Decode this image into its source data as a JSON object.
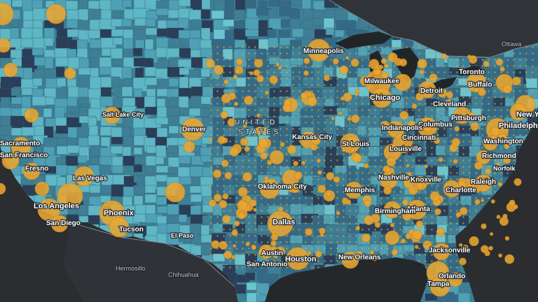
{
  "map": {
    "country_label": [
      "UNITED",
      "STATES"
    ],
    "colors": {
      "background": "#2b2d30",
      "water": "#1f2225",
      "land_light": "#5fb6c4",
      "land_mid": "#3f7f96",
      "land_dark": "#2a3e57",
      "bubble": "#e9a632",
      "border": "#7c8590"
    },
    "cities": [
      {
        "name": "Minneapolis",
        "size": "mid"
      },
      {
        "name": "Toronto",
        "size": "mid"
      },
      {
        "name": "Ottawa",
        "size": "small"
      },
      {
        "name": "Milwaukee",
        "size": "mid"
      },
      {
        "name": "Chicago",
        "size": "big"
      },
      {
        "name": "Detroit",
        "size": "mid"
      },
      {
        "name": "Buffalo",
        "size": "mid"
      },
      {
        "name": "Cleveland",
        "size": "mid"
      },
      {
        "name": "New York",
        "size": "big"
      },
      {
        "name": "Pittsburgh",
        "size": "mid"
      },
      {
        "name": "Columbus",
        "size": "mid"
      },
      {
        "name": "Indianapolis",
        "size": "mid"
      },
      {
        "name": "Cincinnati",
        "size": "mid"
      },
      {
        "name": "Philadelphia",
        "size": "big"
      },
      {
        "name": "Washington",
        "size": "mid"
      },
      {
        "name": "Louisville",
        "size": "mid"
      },
      {
        "name": "Kansas City",
        "size": "mid"
      },
      {
        "name": "St Louis",
        "size": "mid"
      },
      {
        "name": "Salt Lake City",
        "size": "small"
      },
      {
        "name": "Denver",
        "size": "mid"
      },
      {
        "name": "Sacramento",
        "size": "mid"
      },
      {
        "name": "San Francisco",
        "size": "mid"
      },
      {
        "name": "Fresno",
        "size": "mid"
      },
      {
        "name": "Las Vegas",
        "size": "mid"
      },
      {
        "name": "Los Angeles",
        "size": "big"
      },
      {
        "name": "San Diego",
        "size": "mid"
      },
      {
        "name": "Phoenix",
        "size": "big"
      },
      {
        "name": "Tucson",
        "size": "mid"
      },
      {
        "name": "El Paso",
        "size": "small"
      },
      {
        "name": "Oklahoma City",
        "size": "mid"
      },
      {
        "name": "Memphis",
        "size": "mid"
      },
      {
        "name": "Nashville",
        "size": "mid"
      },
      {
        "name": "Knoxville",
        "size": "mid"
      },
      {
        "name": "Richmond",
        "size": "mid"
      },
      {
        "name": "Norfolk",
        "size": "small"
      },
      {
        "name": "Raleigh",
        "size": "mid"
      },
      {
        "name": "Charlotte",
        "size": "mid"
      },
      {
        "name": "Atlanta",
        "size": "mid"
      },
      {
        "name": "Birmingham",
        "size": "mid"
      },
      {
        "name": "Dallas",
        "size": "big"
      },
      {
        "name": "Austin",
        "size": "mid"
      },
      {
        "name": "San Antonio",
        "size": "mid"
      },
      {
        "name": "Houston",
        "size": "big"
      },
      {
        "name": "New Orleans",
        "size": "mid"
      },
      {
        "name": "Jacksonville",
        "size": "mid"
      },
      {
        "name": "Orlando",
        "size": "mid"
      },
      {
        "name": "Tampa",
        "size": "mid"
      }
    ],
    "foreign_places": [
      {
        "name": "Hermosillo"
      },
      {
        "name": "Chihuahua"
      }
    ]
  }
}
